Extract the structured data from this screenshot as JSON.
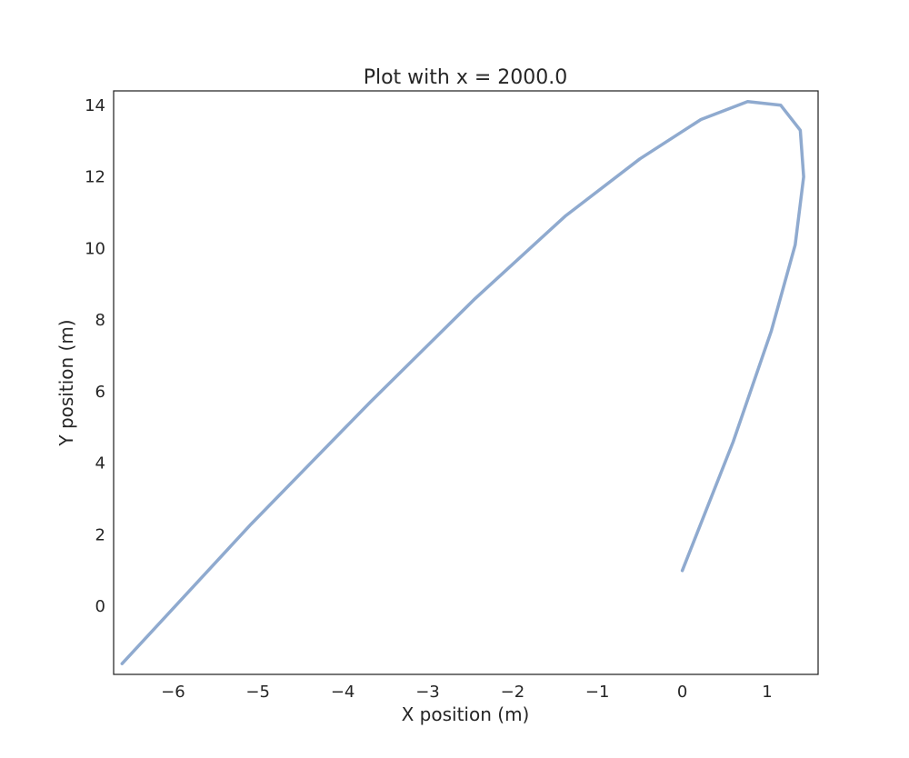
{
  "chart_data": {
    "type": "line",
    "title": "Plot with x = 2000.0",
    "xlabel": "X position (m)",
    "ylabel": "Y position (m)",
    "xlim": [
      -6.7,
      1.6
    ],
    "ylim": [
      -1.9,
      14.4
    ],
    "xticks": [
      -6,
      -5,
      -4,
      -3,
      -2,
      -1,
      0,
      1
    ],
    "xtick_labels": [
      "−6",
      "−5",
      "−4",
      "−3",
      "−2",
      "−1",
      "0",
      "1"
    ],
    "yticks": [
      0,
      2,
      4,
      6,
      8,
      10,
      12,
      14
    ],
    "ytick_labels": [
      "0",
      "2",
      "4",
      "6",
      "8",
      "10",
      "12",
      "14"
    ],
    "grid": false,
    "series": [
      {
        "color": "#8faacf",
        "x": [
          0.0,
          0.6,
          1.05,
          1.33,
          1.43,
          1.39,
          1.16,
          0.77,
          0.22,
          -0.5,
          -1.38,
          -2.44,
          -3.68,
          -5.08,
          -6.6
        ],
        "y": [
          1.0,
          4.6,
          7.7,
          10.1,
          12.0,
          13.3,
          14.0,
          14.1,
          13.6,
          12.5,
          10.9,
          8.6,
          5.7,
          2.3,
          -1.6
        ]
      }
    ]
  }
}
